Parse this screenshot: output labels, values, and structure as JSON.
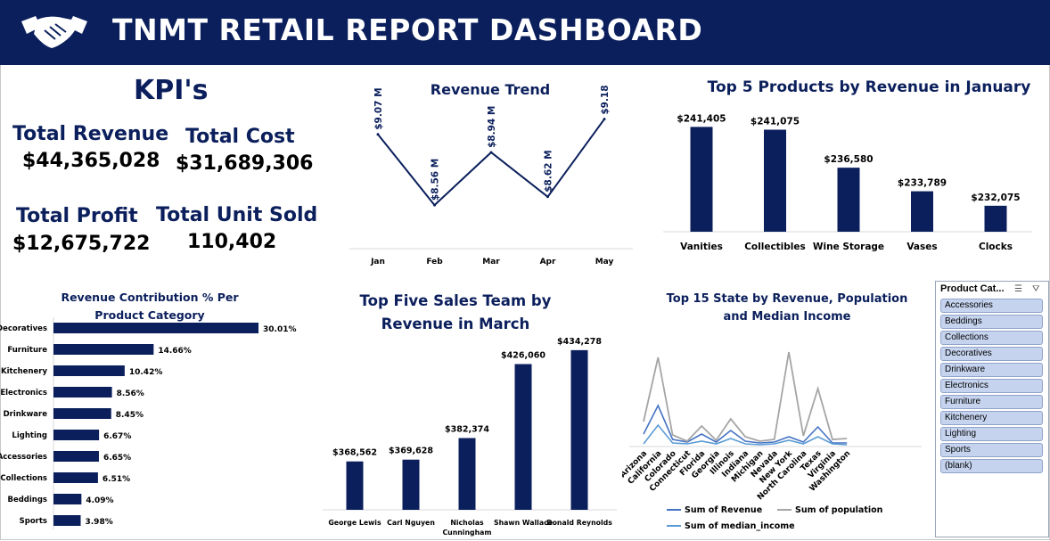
{
  "header": {
    "title": "TNMT RETAIL REPORT DASHBOARD",
    "logo_icon": "handshake-icon"
  },
  "colors": {
    "primary": "#0b1f5c",
    "bar": "#0b1f5c",
    "revenue_line": "#4472c4",
    "population_line": "#a5a5a5",
    "income_line": "#5b9bd5",
    "slicer_item": "#c5d3ee"
  },
  "kpi": {
    "title": "KPI's",
    "total_revenue_label": "Total Revenue",
    "total_revenue_value": "$44,365,028",
    "total_cost_label": "Total Cost",
    "total_cost_value": "$31,689,306",
    "total_profit_label": "Total Profit",
    "total_profit_value": "$12,675,722",
    "total_units_label": "Total Unit Sold",
    "total_units_value": "110,402"
  },
  "slicer": {
    "title": "Product Cat...",
    "items": [
      "Accessories",
      "Beddings",
      "Collections",
      "Decoratives",
      "Drinkware",
      "Electronics",
      "Furniture",
      "Kitchenery",
      "Lighting",
      "Sports",
      "(blank)"
    ]
  },
  "chart_data": [
    {
      "id": "revenue-trend",
      "type": "line",
      "title": "Revenue Trend",
      "categories": [
        "Jan",
        "Feb",
        "Mar",
        "Apr",
        "May"
      ],
      "values": [
        9.07,
        8.56,
        8.94,
        8.62,
        9.18
      ],
      "labels": [
        "$9.07 M",
        "$8.56 M",
        "$8.94 M",
        "$8.62 M",
        "$9.18 M"
      ],
      "grid": false
    },
    {
      "id": "top-products-january",
      "type": "bar",
      "title": "Top 5 Products by Revenue in January",
      "categories": [
        "Vanities",
        "Collectibles",
        "Wine Storage",
        "Vases",
        "Clocks"
      ],
      "values": [
        241405,
        241075,
        236580,
        233789,
        232075
      ],
      "labels": [
        "$241,405",
        "$241,075",
        "$236,580",
        "$233,789",
        "$232,075"
      ],
      "ylim": [
        229000,
        242500
      ]
    },
    {
      "id": "revenue-contribution",
      "type": "bar",
      "orientation": "horizontal",
      "title": "Revenue Contribution % Per Product Category",
      "categories": [
        "Decoratives",
        "Furniture",
        "Kitchenery",
        "Electronics",
        "Drinkware",
        "Lighting",
        "Accessories",
        "Collections",
        "Beddings",
        "Sports"
      ],
      "values": [
        30.01,
        14.66,
        10.42,
        8.56,
        8.45,
        6.67,
        6.65,
        6.51,
        4.09,
        3.98
      ],
      "labels": [
        "30.01%",
        "14.66%",
        "10.42%",
        "8.56%",
        "8.45%",
        "6.67%",
        "6.65%",
        "6.51%",
        "4.09%",
        "3.98%"
      ]
    },
    {
      "id": "top-sales-team-march",
      "type": "bar",
      "title": "Top Five Sales Team by Revenue in March",
      "categories": [
        "George Lewis",
        "Carl Nguyen",
        "Nicholas Cunningham",
        "Shawn Wallace",
        "Donald Reynolds"
      ],
      "values": [
        368562,
        369628,
        382374,
        426060,
        434278
      ],
      "labels": [
        "$368,562",
        "$369,628",
        "$382,374",
        "$426,060",
        "$434,278"
      ],
      "ylim": [
        340000,
        440000
      ]
    },
    {
      "id": "top-states",
      "type": "line",
      "title": "Top 15 State by Revenue, Population and Median Income",
      "categories": [
        "Arizona",
        "California",
        "Colorado",
        "Connecticut",
        "Florida",
        "Georgia",
        "Illinois",
        "Indiana",
        "Michigan",
        "Nevada",
        "New York",
        "North Carolina",
        "Texas",
        "Virginia",
        "Washington"
      ],
      "series": [
        {
          "name": "Sum of Revenue",
          "values": [
            14,
            46,
            8,
            5,
            14,
            5,
            18,
            6,
            4,
            5,
            11,
            5,
            22,
            4,
            4
          ]
        },
        {
          "name": "Sum of population",
          "values": [
            28,
            100,
            13,
            6,
            23,
            7,
            31,
            11,
            6,
            8,
            106,
            12,
            65,
            8,
            9
          ]
        },
        {
          "name": "Sum of median_income",
          "values": [
            3,
            24,
            4,
            3,
            6,
            3,
            9,
            3,
            2,
            3,
            7,
            3,
            11,
            3,
            2
          ]
        }
      ],
      "legend": "bottom"
    }
  ]
}
